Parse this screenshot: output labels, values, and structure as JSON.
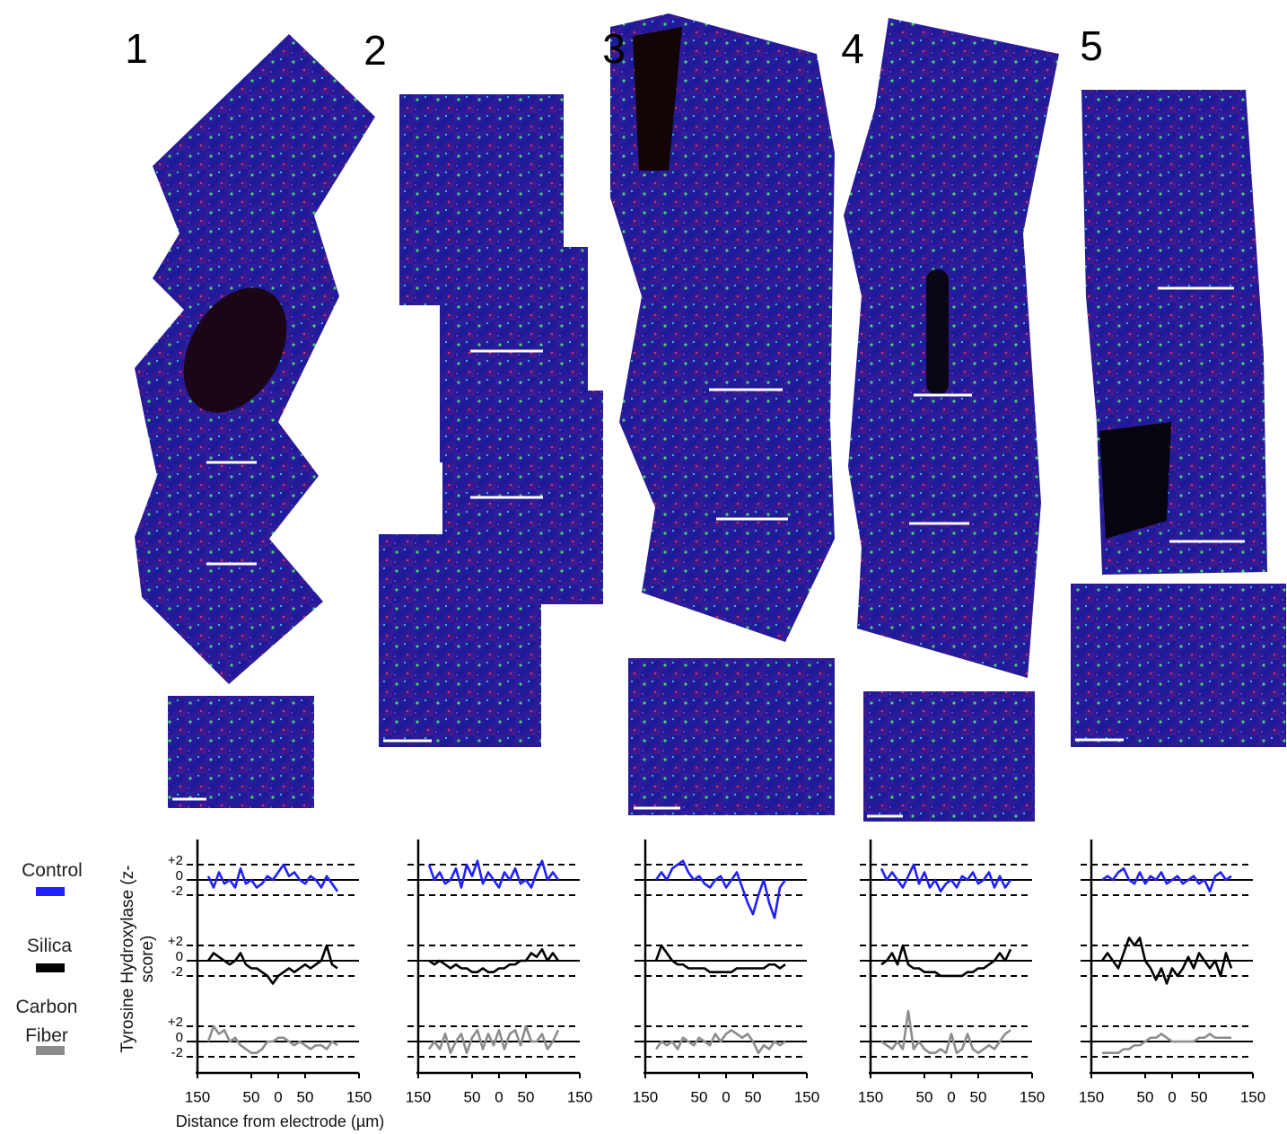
{
  "panel_labels": [
    "1",
    "2",
    "3",
    "4",
    "5"
  ],
  "chart_data": [
    {
      "type": "line",
      "y_label": "Tyrosine Hydroxylase (z-score)",
      "x_label": "Distance from electrode (µm)",
      "xlim": [
        -150,
        150
      ],
      "xticks": [
        {
          "value": -150,
          "label": "150"
        },
        {
          "value": -50,
          "label": "50"
        },
        0,
        50,
        150
      ],
      "ylim": [
        -5.3,
        5.3
      ],
      "yticks": [
        {
          "value": 2,
          "label": "+2"
        },
        0,
        -2
      ],
      "x": [
        -130,
        -120,
        -110,
        -100,
        -90,
        -80,
        -70,
        -60,
        -50,
        -40,
        -30,
        -20,
        -10,
        0,
        10,
        20,
        30,
        40,
        50,
        60,
        70,
        80,
        90,
        100,
        110
      ],
      "series": [
        {
          "name": "Control",
          "color": "#1f1fff",
          "values": [
            0.5,
            -1,
            1,
            -0.5,
            0,
            -1,
            1.5,
            -0.5,
            0,
            -1,
            -0.5,
            0.5,
            0,
            1,
            2,
            0.5,
            1,
            0,
            -0.5,
            0.5,
            0,
            -1,
            0.5,
            -0.5,
            -1.5
          ]
        },
        {
          "name": "Silica",
          "color": "#000000",
          "values": [
            0,
            1,
            0.5,
            0,
            -0.5,
            0,
            1,
            -0.5,
            -1,
            -1,
            -1.5,
            -2,
            -3,
            -2,
            -1.5,
            -1,
            -1.5,
            -1,
            -0.5,
            -1,
            -0.5,
            0,
            2,
            -0.5,
            -1
          ]
        },
        {
          "name": "Carbon Fiber",
          "color": "#8c8c8c",
          "values": [
            0,
            2,
            1,
            1.5,
            0,
            0.5,
            -0.5,
            -1,
            -1.5,
            -1.5,
            -1,
            0,
            0,
            0.5,
            0.5,
            0,
            -0.5,
            0,
            -0.5,
            -1,
            -0.5,
            -0.5,
            -1,
            0,
            -0.5
          ]
        }
      ]
    },
    {
      "type": "line",
      "xlim": [
        -150,
        150
      ],
      "xticks": [
        {
          "value": -150,
          "label": "150"
        },
        {
          "value": -50,
          "label": "50"
        },
        0,
        50,
        150
      ],
      "ylim": [
        -5.3,
        5.3
      ],
      "x": [
        -130,
        -120,
        -110,
        -100,
        -90,
        -80,
        -70,
        -60,
        -50,
        -40,
        -30,
        -20,
        -10,
        0,
        10,
        20,
        30,
        40,
        50,
        60,
        70,
        80,
        90,
        100,
        110
      ],
      "series": [
        {
          "color": "#1f1fff",
          "values": [
            2,
            0,
            1,
            -0.5,
            0,
            1.5,
            -1,
            2,
            0.5,
            2.5,
            -0.5,
            1,
            0,
            -1,
            1,
            0,
            1.5,
            -0.5,
            0,
            -1,
            1,
            2.5,
            0,
            1,
            0
          ]
        },
        {
          "color": "#000000",
          "values": [
            0,
            -0.5,
            0,
            -0.5,
            -1,
            -0.5,
            -1,
            -1,
            -1.5,
            -1.5,
            -1,
            -1.5,
            -1.5,
            -1,
            -1,
            -0.5,
            -0.5,
            0,
            0,
            1,
            0.5,
            1.5,
            0,
            1,
            0
          ]
        },
        {
          "color": "#8c8c8c",
          "values": [
            -1,
            0,
            -1,
            1,
            -1.5,
            0,
            1,
            -1.5,
            0.5,
            1.5,
            -1,
            1,
            -0.5,
            1.5,
            -1,
            1,
            1.5,
            -0.5,
            2,
            0,
            0,
            1,
            -1,
            0,
            1.5
          ]
        }
      ]
    },
    {
      "type": "line",
      "xlim": [
        -150,
        150
      ],
      "xticks": [
        {
          "value": -150,
          "label": "150"
        },
        {
          "value": -50,
          "label": "50"
        },
        0,
        50,
        150
      ],
      "ylim": [
        -5.3,
        5.3
      ],
      "x": [
        -130,
        -120,
        -110,
        -100,
        -90,
        -80,
        -70,
        -60,
        -50,
        -40,
        -30,
        -20,
        -10,
        0,
        10,
        20,
        30,
        40,
        50,
        60,
        70,
        80,
        90,
        100,
        110
      ],
      "series": [
        {
          "color": "#1f1fff",
          "values": [
            0,
            1,
            0,
            1.5,
            2,
            2.5,
            1,
            0,
            0.5,
            -0.5,
            -1,
            0,
            0.5,
            -1,
            0,
            1,
            -1,
            -3,
            -4.5,
            -2,
            0,
            -3,
            -5,
            -1,
            0
          ]
        },
        {
          "color": "#000000",
          "values": [
            0,
            2,
            1,
            0,
            -0.5,
            -0.5,
            -1,
            -1,
            -1,
            -1,
            -1.5,
            -1.5,
            -1.5,
            -1.5,
            -1.5,
            -1,
            -1,
            -1,
            -1,
            -1,
            -1,
            -0.5,
            -0.5,
            -1,
            -0.5
          ]
        },
        {
          "color": "#8c8c8c",
          "values": [
            -1,
            0,
            -0.5,
            0,
            -1,
            0.5,
            0,
            -0.5,
            0.5,
            0,
            -0.5,
            1,
            0,
            1,
            1.5,
            1,
            0.5,
            1,
            0,
            -1.5,
            -0.5,
            -1,
            0,
            -0.5,
            0
          ]
        }
      ]
    },
    {
      "type": "line",
      "xlim": [
        -150,
        150
      ],
      "xticks": [
        {
          "value": -150,
          "label": "150"
        },
        {
          "value": -50,
          "label": "50"
        },
        0,
        50,
        150
      ],
      "ylim": [
        -5.3,
        5.3
      ],
      "x": [
        -130,
        -120,
        -110,
        -100,
        -90,
        -80,
        -70,
        -60,
        -50,
        -40,
        -30,
        -20,
        -10,
        0,
        10,
        20,
        30,
        40,
        50,
        60,
        70,
        80,
        90,
        100,
        110
      ],
      "series": [
        {
          "color": "#1f1fff",
          "values": [
            1.5,
            0,
            1,
            0,
            -1,
            0.5,
            2,
            -0.5,
            1,
            -1,
            0,
            -1.5,
            -0.5,
            0,
            -1,
            0.5,
            0,
            1,
            -0.5,
            0,
            1,
            -1,
            0.5,
            -1,
            0
          ]
        },
        {
          "color": "#000000",
          "values": [
            -0.5,
            0,
            1,
            -0.5,
            2,
            -0.5,
            -1,
            -1,
            -1.5,
            -1.5,
            -1.5,
            -2,
            -2,
            -2,
            -2,
            -2,
            -1.5,
            -1.5,
            -1,
            -1,
            -0.5,
            0,
            1,
            0,
            1.5
          ]
        },
        {
          "color": "#8c8c8c",
          "values": [
            0,
            -0.5,
            -1,
            0,
            -1,
            4,
            -1,
            0,
            -1,
            -1.5,
            -1.5,
            -1,
            -1.5,
            1,
            -1.5,
            -1,
            1,
            -1,
            -1.5,
            -1,
            -0.5,
            -1,
            0,
            1,
            1.5
          ]
        }
      ]
    },
    {
      "type": "line",
      "xlim": [
        -150,
        150
      ],
      "xticks": [
        {
          "value": -150,
          "label": "150"
        },
        {
          "value": -50,
          "label": "50"
        },
        0,
        50,
        150
      ],
      "ylim": [
        -5.3,
        5.3
      ],
      "x": [
        -130,
        -120,
        -110,
        -100,
        -90,
        -80,
        -70,
        -60,
        -50,
        -40,
        -30,
        -20,
        -10,
        0,
        10,
        20,
        30,
        40,
        50,
        60,
        70,
        80,
        90,
        100,
        110
      ],
      "series": [
        {
          "color": "#1f1fff",
          "values": [
            0,
            0.5,
            0,
            1,
            1.5,
            0,
            -0.5,
            1,
            -0.5,
            0.5,
            0,
            1,
            -0.5,
            0,
            0.5,
            -0.5,
            0,
            0.5,
            -0.5,
            0,
            -1.5,
            0.5,
            1,
            0,
            0.5
          ]
        },
        {
          "color": "#000000",
          "values": [
            0,
            1,
            0,
            -1,
            1,
            3,
            2,
            3,
            0,
            -1,
            -2.5,
            -1,
            -3,
            -1,
            -2,
            -1,
            0.5,
            -1,
            1,
            0,
            -1,
            0,
            -2,
            1,
            -1
          ]
        },
        {
          "color": "#8c8c8c",
          "values": [
            -1.5,
            -1.5,
            -1.5,
            -1.5,
            -1,
            -1,
            -0.5,
            -0.5,
            0,
            0.5,
            0.5,
            1,
            0.5,
            0,
            0,
            0,
            0,
            0,
            0.5,
            0.5,
            1,
            0.5,
            0.5,
            0.5,
            0.5
          ]
        }
      ]
    }
  ]
}
